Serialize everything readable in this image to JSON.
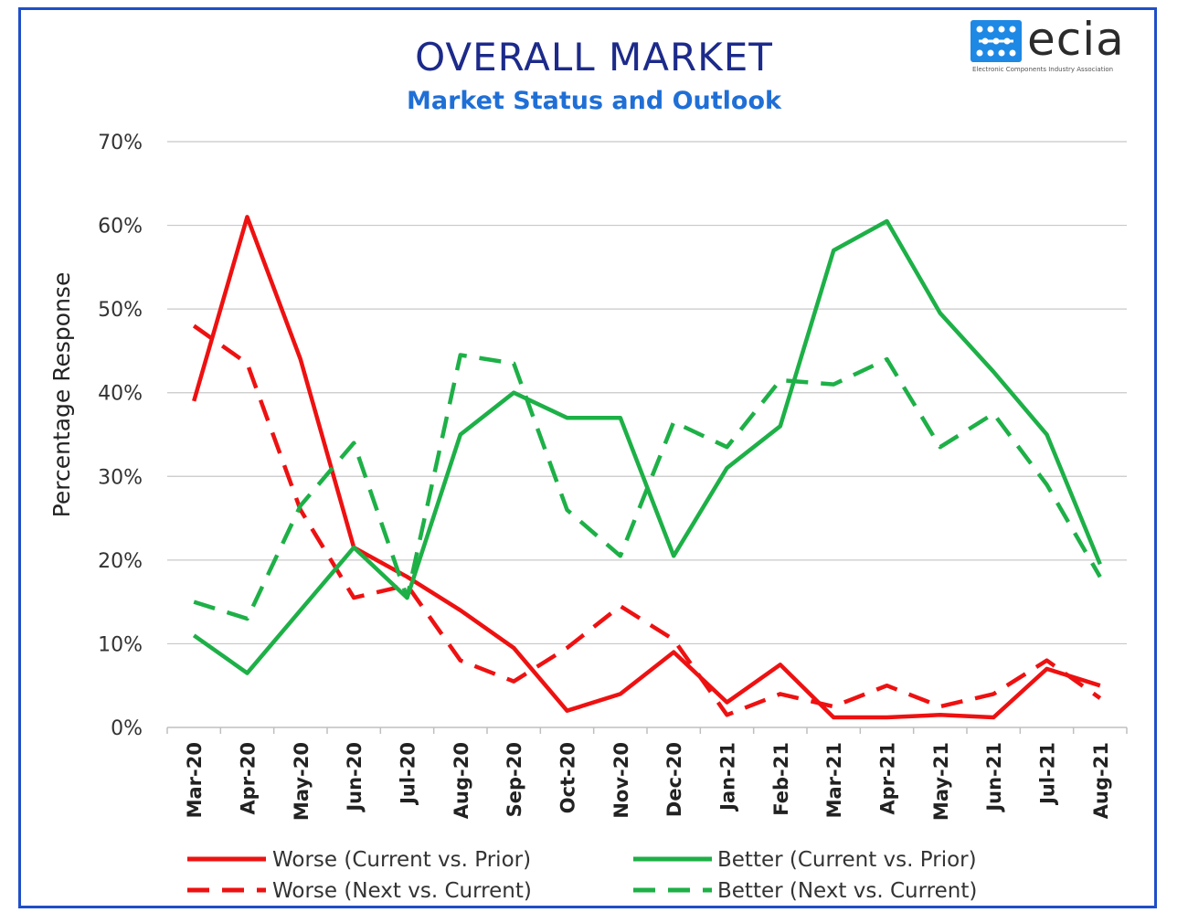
{
  "header": {
    "title": "OVERALL MARKET",
    "subtitle": "Market Status and Outlook"
  },
  "logo": {
    "word": "ecia",
    "tagline": "Electronic Components Industry Association",
    "color": "#1e88e5"
  },
  "chart_data": {
    "type": "line",
    "title": "OVERALL MARKET",
    "subtitle": "Market Status and Outlook",
    "xlabel": "",
    "ylabel": "Percentage Response",
    "ylim": [
      0,
      70
    ],
    "yticks": [
      0,
      10,
      20,
      30,
      40,
      50,
      60,
      70
    ],
    "ytick_labels": [
      "0%",
      "10%",
      "20%",
      "30%",
      "40%",
      "50%",
      "60%",
      "70%"
    ],
    "grid": true,
    "legend_position": "bottom",
    "categories": [
      "Mar-20",
      "Apr-20",
      "May-20",
      "Jun-20",
      "Jul-20",
      "Aug-20",
      "Sep-20",
      "Oct-20",
      "Nov-20",
      "Dec-20",
      "Jan-21",
      "Feb-21",
      "Mar-21",
      "Apr-21",
      "May-21",
      "Jun-21",
      "Jul-21",
      "Aug-21"
    ],
    "series": [
      {
        "name": "Worse (Current vs. Prior)",
        "color": "#ee1111",
        "dash": false,
        "values": [
          39,
          61,
          44,
          21.5,
          18,
          14,
          9.5,
          2,
          4,
          9,
          3,
          7.5,
          1.2,
          1.2,
          1.5,
          1.2,
          7,
          5
        ]
      },
      {
        "name": "Worse (Next vs. Current)",
        "color": "#ee1111",
        "dash": true,
        "values": [
          48,
          43.5,
          26,
          15.5,
          17,
          8,
          5.5,
          9.5,
          14.5,
          10.5,
          1.5,
          4,
          2.5,
          5,
          2.5,
          4,
          8,
          3.5
        ]
      },
      {
        "name": "Better (Current vs. Prior)",
        "color": "#1db047",
        "dash": false,
        "values": [
          11,
          6.5,
          14,
          21.5,
          15.5,
          35,
          40,
          37,
          37,
          20.5,
          31,
          36,
          57,
          60.5,
          49.5,
          42.5,
          35,
          19.5
        ]
      },
      {
        "name": "Better (Next vs. Current)",
        "color": "#1db047",
        "dash": true,
        "values": [
          15,
          13,
          26.5,
          34,
          15.5,
          44.5,
          43.5,
          26,
          20.5,
          36.5,
          33.5,
          41.5,
          41,
          44,
          33.5,
          37.5,
          29,
          18
        ]
      }
    ]
  }
}
